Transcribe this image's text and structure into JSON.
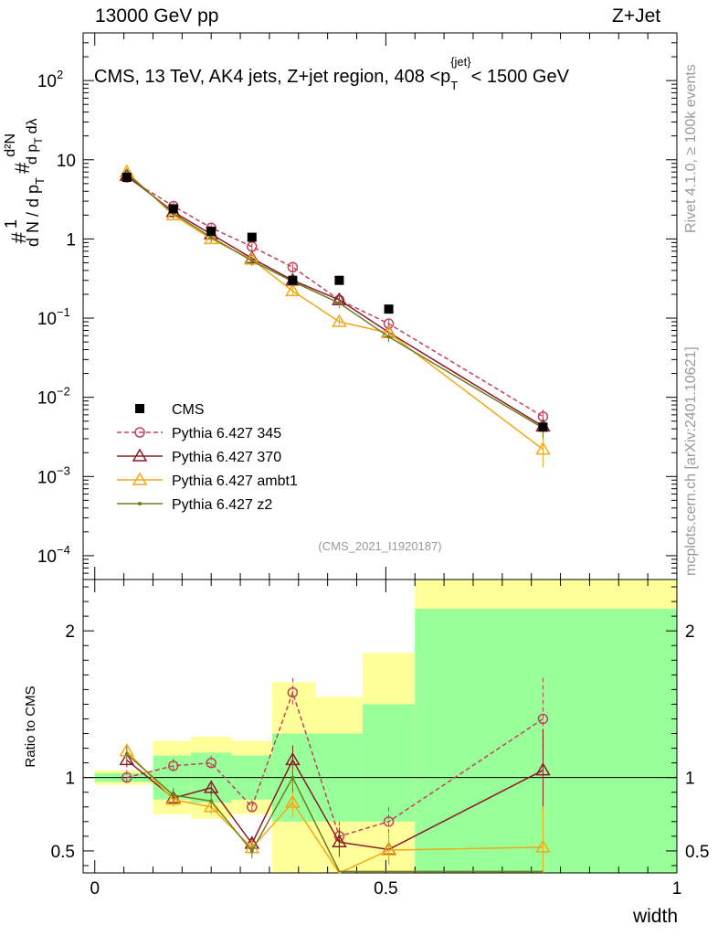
{
  "header": {
    "left": "13000 GeV pp",
    "right": "Z+Jet"
  },
  "side": {
    "rivet": "Rivet 4.1.0, ≥ 100k events",
    "mcplots": "mcplots.cern.ch [arXiv:2401.10621]"
  },
  "colors": {
    "cms": "#000000",
    "p345": "#c0435b",
    "p370": "#8b1a2b",
    "ambt1": "#f2a818",
    "z2": "#6e7d1e",
    "band_yellow": "#ffff99",
    "band_green": "#99ff99"
  },
  "chart_data": [
    {
      "type": "scatter",
      "panel": "main",
      "title": "CMS, 13 TeV, AK4 jets, Z+jet region, 408 <p_T^{jet}< 1500 GeV",
      "title_parts": {
        "main": "CMS, 13 TeV, AK4 jets, Z+jet region, 408 <p",
        "sub": "T",
        "sup": "{jet}",
        "tail": "< 1500 GeV"
      },
      "ylabel": "1/N dN/d p_T # d²N/d p_T dλ",
      "ylabel_parts": {
        "a": "#",
        "b": "1",
        "c": "d N / d p",
        "d": "T",
        "e": "#",
        "f": "d²N",
        "g": "d p",
        "h": "T",
        "i": "dλ"
      },
      "yscale": "log",
      "ylim": [
        5e-05,
        400
      ],
      "ytick_labels": [
        "10^-4",
        "10^-3",
        "10^-2",
        "10^-1",
        "1",
        "10",
        "10^2"
      ],
      "ytick_text": {
        "m4": "10",
        "m4e": "−4",
        "m3": "10",
        "m3e": "−3",
        "m2": "10",
        "m2e": "−2",
        "m1": "10",
        "m1e": "−1",
        "one": "1",
        "ten": "10",
        "hund": "10",
        "hunde": "2"
      },
      "watermark": "(CMS_2021_I1920187)",
      "legend": [
        "CMS",
        "Pythia 6.427 345",
        "Pythia 6.427 370",
        "Pythia 6.427 ambt1",
        "Pythia 6.427 z2"
      ],
      "series": [
        {
          "name": "CMS",
          "style": "square",
          "x": [
            0.055,
            0.135,
            0.2,
            0.27,
            0.34,
            0.42,
            0.505,
            0.77
          ],
          "y": [
            6.0,
            2.4,
            1.25,
            1.05,
            0.3,
            0.3,
            0.13,
            0.0042
          ]
        },
        {
          "name": "Pythia 6.427 345",
          "style": "circle-dashed",
          "x": [
            0.055,
            0.135,
            0.2,
            0.27,
            0.34,
            0.42,
            0.505,
            0.77
          ],
          "y": [
            6.0,
            2.6,
            1.38,
            0.8,
            0.44,
            0.17,
            0.085,
            0.0057
          ]
        },
        {
          "name": "Pythia 6.427 370",
          "style": "triangle",
          "x": [
            0.055,
            0.135,
            0.2,
            0.27,
            0.34,
            0.42,
            0.505,
            0.77
          ],
          "y": [
            6.3,
            2.2,
            1.15,
            0.57,
            0.3,
            0.17,
            0.066,
            0.0043
          ]
        },
        {
          "name": "Pythia 6.427 ambt1",
          "style": "triangle-open",
          "x": [
            0.055,
            0.135,
            0.2,
            0.27,
            0.34,
            0.42,
            0.505,
            0.77
          ],
          "y": [
            7.0,
            2.0,
            1.0,
            0.55,
            0.22,
            0.09,
            0.065,
            0.0022
          ]
        },
        {
          "name": "Pythia 6.427 z2",
          "style": "dot",
          "x": [
            0.055,
            0.135,
            0.2,
            0.27,
            0.34,
            0.42,
            0.505,
            0.77
          ],
          "y": [
            6.7,
            2.1,
            1.05,
            0.53,
            0.29,
            0.155,
            0.058,
            0.0041
          ]
        }
      ]
    },
    {
      "type": "scatter",
      "panel": "ratio",
      "xlabel": "width",
      "ylabel": "Ratio to CMS",
      "xlim": [
        -0.02,
        1.0
      ],
      "ylim": [
        0.35,
        2.35
      ],
      "xtick_labels": [
        "0",
        "0.5",
        "1"
      ],
      "ytick_labels": [
        "0.5",
        "1",
        "2"
      ],
      "bands": [
        {
          "x": [
            0.0,
            0.1
          ],
          "yellow": [
            0.95,
            1.05
          ],
          "green": [
            0.97,
            1.03
          ]
        },
        {
          "x": [
            0.1,
            0.165
          ],
          "yellow": [
            0.75,
            1.25
          ],
          "green": [
            0.85,
            1.15
          ]
        },
        {
          "x": [
            0.165,
            0.235
          ],
          "yellow": [
            0.72,
            1.28
          ],
          "green": [
            0.83,
            1.17
          ]
        },
        {
          "x": [
            0.235,
            0.305
          ],
          "yellow": [
            0.75,
            1.25
          ],
          "green": [
            0.85,
            1.15
          ]
        },
        {
          "x": [
            0.305,
            0.38
          ],
          "yellow": [
            0.35,
            1.65
          ],
          "green": [
            0.7,
            1.3
          ]
        },
        {
          "x": [
            0.38,
            0.46
          ],
          "yellow": [
            0.35,
            1.55
          ],
          "green": [
            0.7,
            1.3
          ]
        },
        {
          "x": [
            0.46,
            0.55
          ],
          "yellow": [
            0.35,
            1.85
          ],
          "green": [
            0.7,
            1.5
          ]
        },
        {
          "x": [
            0.55,
            1.0
          ],
          "yellow": [
            0.35,
            2.35
          ],
          "green": [
            0.35,
            2.15
          ]
        }
      ],
      "series": [
        {
          "name": "Pythia 6.427 345",
          "x": [
            0.055,
            0.135,
            0.2,
            0.27,
            0.34,
            0.42,
            0.505,
            0.77
          ],
          "y": [
            1.0,
            1.08,
            1.1,
            0.8,
            1.58,
            0.6,
            0.7,
            1.4
          ]
        },
        {
          "name": "Pythia 6.427 370",
          "x": [
            0.055,
            0.135,
            0.2,
            0.27,
            0.34,
            0.42,
            0.505,
            0.77
          ],
          "y": [
            1.12,
            0.86,
            0.93,
            0.55,
            1.12,
            0.56,
            0.51,
            1.05
          ]
        },
        {
          "name": "Pythia 6.427 ambt1",
          "x": [
            0.055,
            0.135,
            0.2,
            0.27,
            0.34,
            0.42,
            0.505,
            0.77
          ],
          "y": [
            1.18,
            0.85,
            0.8,
            0.52,
            0.83,
            0.32,
            0.505,
            0.525
          ]
        },
        {
          "name": "Pythia 6.427 z2",
          "x": [
            0.055,
            0.135,
            0.2,
            0.27,
            0.34,
            0.42,
            0.505,
            0.77
          ],
          "y": [
            1.16,
            0.88,
            0.84,
            0.5,
            1.0,
            0.36,
            0.36,
            0.36
          ]
        }
      ]
    }
  ]
}
